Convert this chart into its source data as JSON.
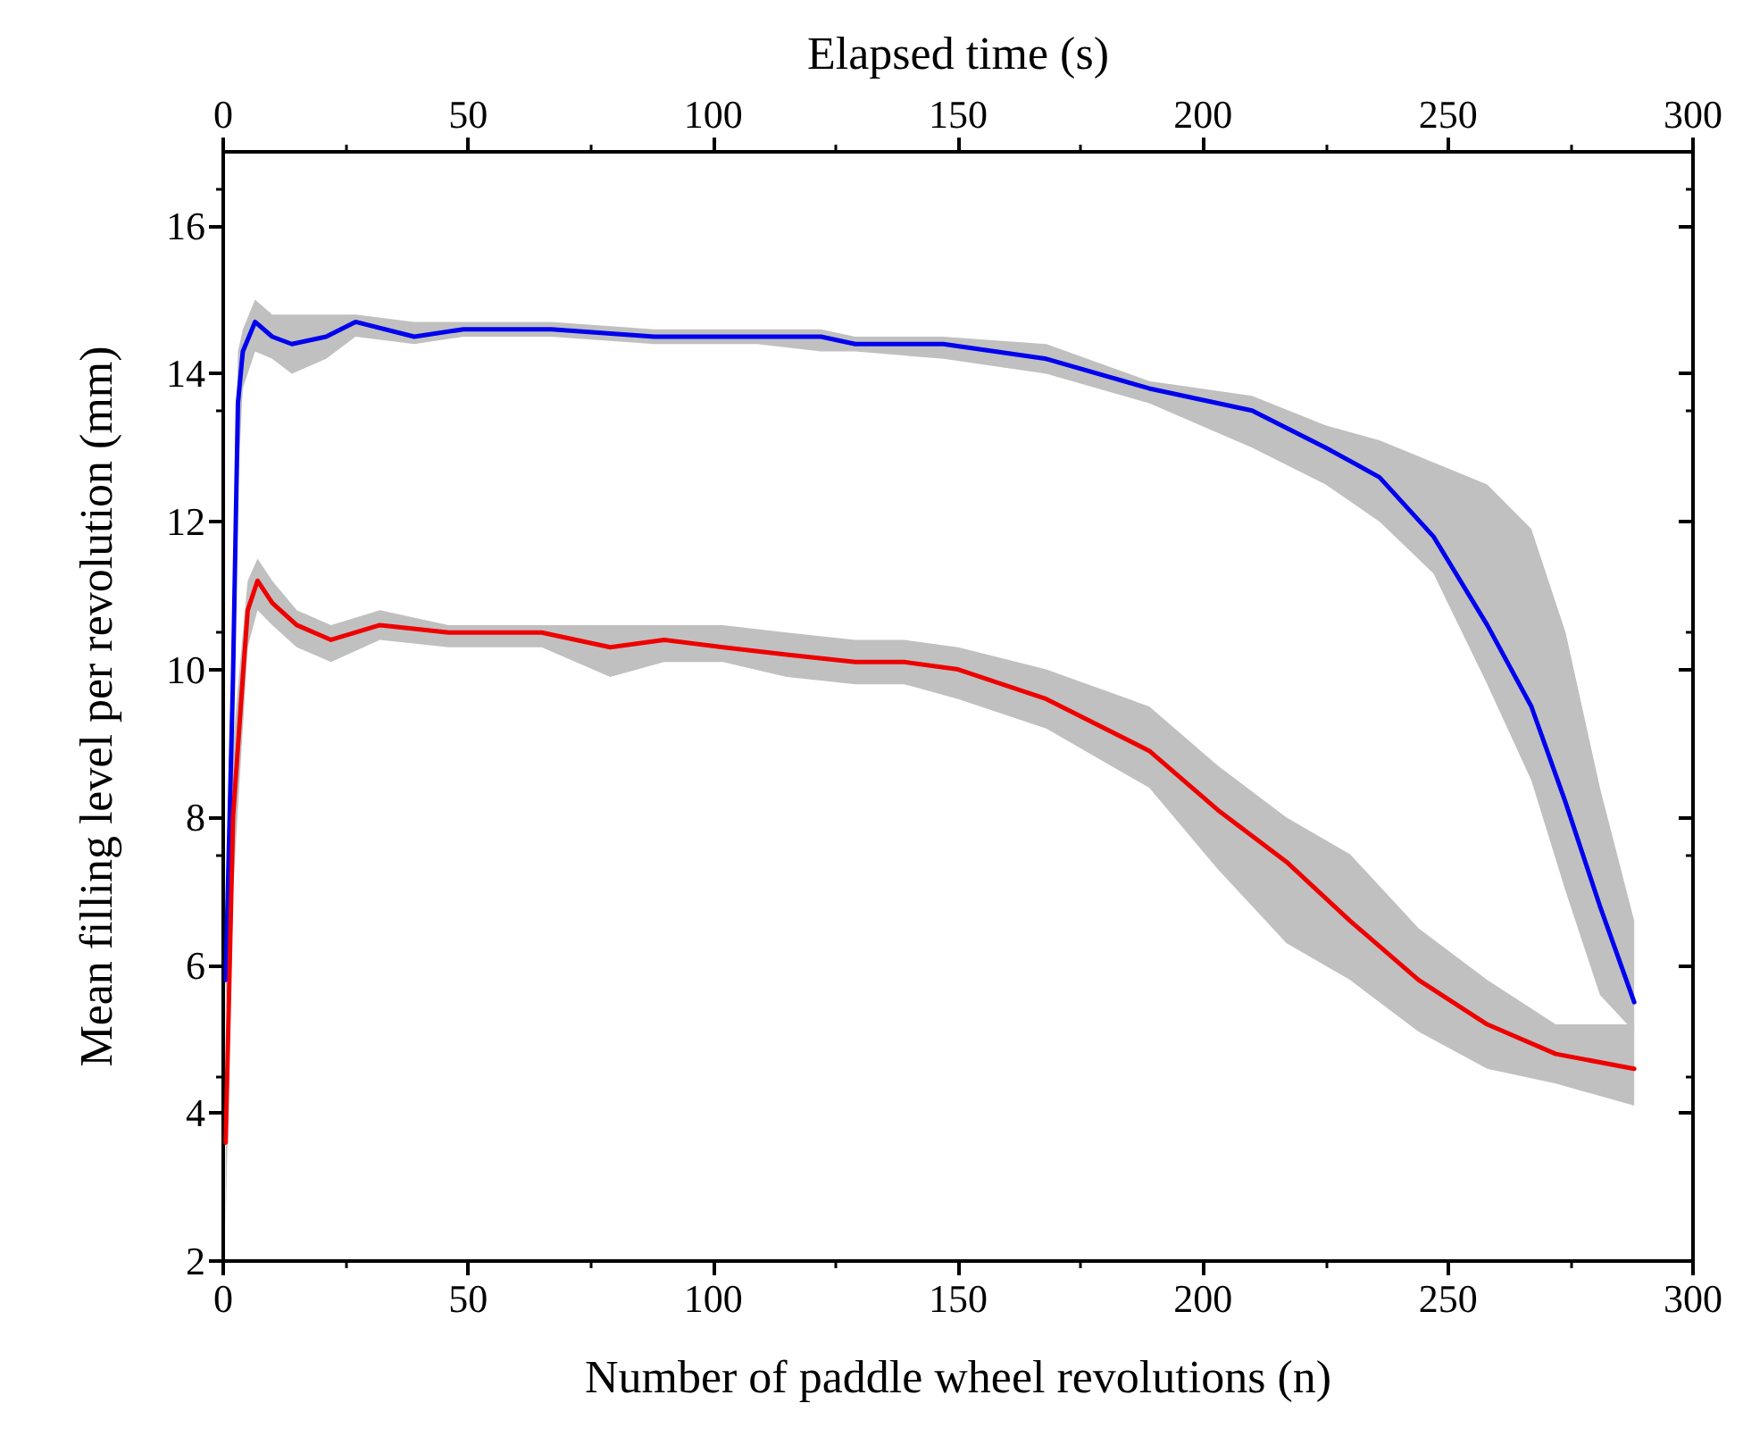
{
  "chart_data": {
    "type": "line",
    "xlabel": "Number of paddle wheel revolutions (n)",
    "ylabel": "Mean filling level per revolution (mm)",
    "x2label": "Elapsed time (s)",
    "xlim": [
      0,
      300
    ],
    "xticks": [
      0,
      50,
      100,
      150,
      200,
      250,
      300
    ],
    "x2lim": [
      0,
      300
    ],
    "x2ticks": [
      0,
      50,
      100,
      150,
      200,
      250,
      300
    ],
    "ylim": [
      2,
      17
    ],
    "yticks": [
      2,
      4,
      6,
      8,
      10,
      12,
      14,
      16
    ],
    "grid": false,
    "marker": "none",
    "line_style": "solid",
    "series": [
      {
        "color": "#0000ee",
        "x": [
          0.5,
          2,
          3,
          4,
          6.5,
          10,
          14,
          21,
          27,
          39,
          49,
          67,
          88,
          100,
          109,
          122,
          129,
          147,
          168,
          189,
          210,
          225,
          236,
          247,
          258,
          267,
          274,
          281,
          288
        ],
        "values": [
          5.8,
          9.9,
          13.6,
          14.3,
          14.7,
          14.5,
          14.4,
          14.5,
          14.7,
          14.5,
          14.6,
          14.6,
          14.5,
          14.5,
          14.5,
          14.5,
          14.4,
          14.4,
          14.2,
          13.8,
          13.5,
          13.0,
          12.6,
          11.8,
          10.6,
          9.5,
          8.2,
          6.8,
          5.5
        ],
        "lower": [
          5.2,
          8.5,
          12.5,
          13.8,
          14.3,
          14.2,
          14.0,
          14.2,
          14.5,
          14.4,
          14.5,
          14.5,
          14.4,
          14.4,
          14.4,
          14.3,
          14.3,
          14.2,
          14.0,
          13.6,
          13.0,
          12.5,
          12.0,
          11.3,
          9.8,
          8.5,
          7.0,
          5.6,
          5.1
        ],
        "upper": [
          6.5,
          11.0,
          14.3,
          14.6,
          15.0,
          14.8,
          14.8,
          14.8,
          14.8,
          14.7,
          14.7,
          14.7,
          14.6,
          14.6,
          14.6,
          14.6,
          14.5,
          14.5,
          14.4,
          13.9,
          13.7,
          13.3,
          13.1,
          12.8,
          12.5,
          11.9,
          10.5,
          8.4,
          6.6
        ]
      },
      {
        "color": "#ee0000",
        "x": [
          0.5,
          2,
          4,
          5,
          7,
          10,
          15,
          22,
          32,
          46,
          65,
          79,
          90,
          102,
          115,
          129,
          139,
          150,
          168,
          189,
          203,
          217,
          230,
          244,
          258,
          272,
          288
        ],
        "values": [
          3.6,
          8.0,
          9.9,
          10.8,
          11.2,
          10.9,
          10.6,
          10.4,
          10.6,
          10.5,
          10.5,
          10.3,
          10.4,
          10.3,
          10.2,
          10.1,
          10.1,
          10.0,
          9.6,
          8.9,
          8.1,
          7.4,
          6.6,
          5.8,
          5.2,
          4.8,
          4.6
        ],
        "lower": [
          2.5,
          7.0,
          9.2,
          10.3,
          10.8,
          10.6,
          10.3,
          10.1,
          10.4,
          10.3,
          10.3,
          9.9,
          10.1,
          10.1,
          9.9,
          9.8,
          9.8,
          9.6,
          9.2,
          8.4,
          7.3,
          6.3,
          5.8,
          5.1,
          4.6,
          4.4,
          4.1
        ],
        "upper": [
          4.5,
          9.0,
          10.5,
          11.2,
          11.5,
          11.2,
          10.8,
          10.6,
          10.8,
          10.6,
          10.6,
          10.6,
          10.6,
          10.6,
          10.5,
          10.4,
          10.4,
          10.3,
          10.0,
          9.5,
          8.7,
          8.0,
          7.5,
          6.5,
          5.8,
          5.2,
          5.2
        ]
      }
    ]
  }
}
